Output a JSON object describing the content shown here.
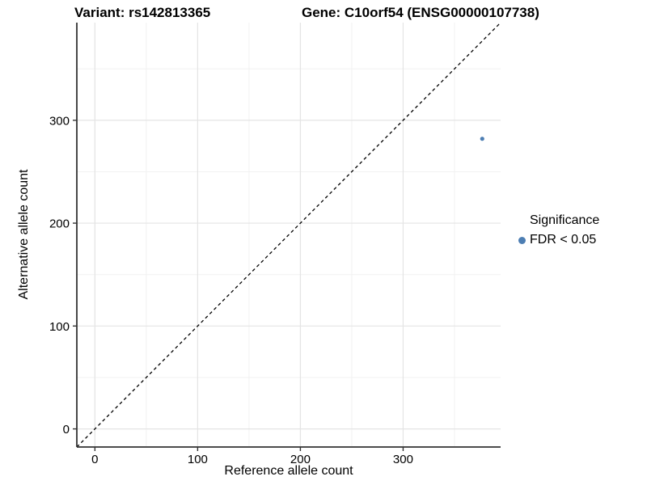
{
  "chart_data": {
    "type": "scatter",
    "title_left": "Variant: rs142813365",
    "title_right": "Gene: C10orf54 (ENSG00000107738)",
    "xlabel": "Reference allele count",
    "ylabel": "Alternative allele count",
    "xlim": [
      -17.6,
      394.9
    ],
    "ylim": [
      -17.6,
      394.9
    ],
    "xticks": [
      0,
      100,
      200,
      300
    ],
    "yticks": [
      0,
      100,
      200,
      300
    ],
    "xminor": [
      50,
      150,
      250,
      350
    ],
    "yminor": [
      50,
      150,
      250,
      350
    ],
    "grid": true,
    "gridline_major_color": "#e4e4e4",
    "gridline_minor_color": "#f1f1f1",
    "axis_line_color": "#333333",
    "legend_position": "right",
    "legend_title": "Significance",
    "reference_line": {
      "slope": 1,
      "intercept": 0,
      "style": "dashed",
      "color": "#000000"
    },
    "series": [
      {
        "name": "FDR < 0.05",
        "color": "#4d7eb3",
        "point_radius": 2.6,
        "points": [
          [
            377,
            282
          ]
        ]
      }
    ]
  }
}
